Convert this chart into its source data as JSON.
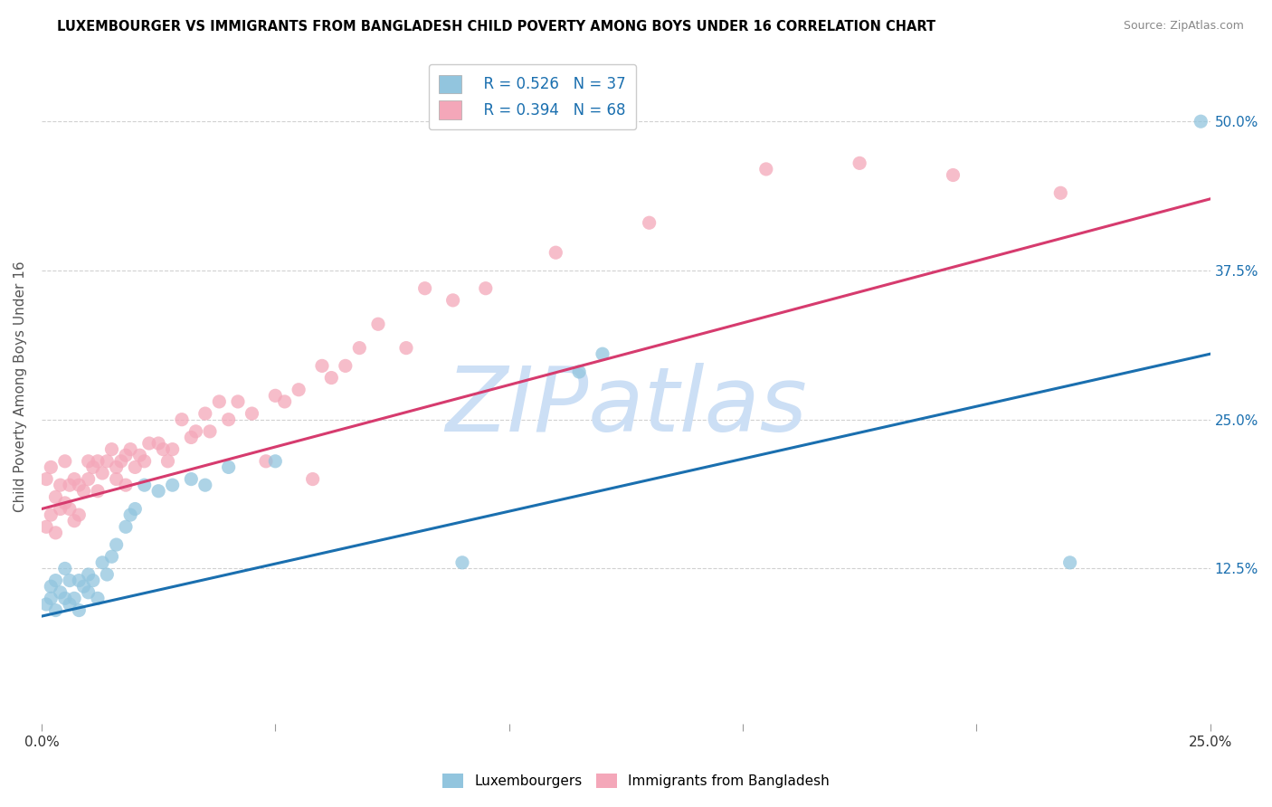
{
  "title": "LUXEMBOURGER VS IMMIGRANTS FROM BANGLADESH CHILD POVERTY AMONG BOYS UNDER 16 CORRELATION CHART",
  "source": "Source: ZipAtlas.com",
  "ylabel": "Child Poverty Among Boys Under 16",
  "xlim": [
    0,
    0.25
  ],
  "ylim": [
    -0.005,
    0.56
  ],
  "ytick_labels_right": [
    "12.5%",
    "25.0%",
    "37.5%",
    "50.0%"
  ],
  "ytick_vals_right": [
    0.125,
    0.25,
    0.375,
    0.5
  ],
  "blue_R": 0.526,
  "blue_N": 37,
  "pink_R": 0.394,
  "pink_N": 68,
  "blue_color": "#92c5de",
  "pink_color": "#f4a7b9",
  "blue_line_color": "#1a6faf",
  "pink_line_color": "#d63b6e",
  "watermark": "ZIPatlas",
  "watermark_color": "#ccdff5",
  "blue_line_x0": 0.0,
  "blue_line_y0": 0.085,
  "blue_line_x1": 0.25,
  "blue_line_y1": 0.305,
  "pink_line_x0": 0.0,
  "pink_line_y0": 0.175,
  "pink_line_x1": 0.25,
  "pink_line_y1": 0.435,
  "blue_scatter_x": [
    0.001,
    0.002,
    0.002,
    0.003,
    0.003,
    0.004,
    0.005,
    0.005,
    0.006,
    0.006,
    0.007,
    0.008,
    0.008,
    0.009,
    0.01,
    0.01,
    0.011,
    0.012,
    0.013,
    0.014,
    0.015,
    0.016,
    0.018,
    0.019,
    0.02,
    0.022,
    0.025,
    0.028,
    0.032,
    0.035,
    0.04,
    0.05,
    0.09,
    0.115,
    0.12,
    0.22,
    0.248
  ],
  "blue_scatter_y": [
    0.095,
    0.11,
    0.1,
    0.115,
    0.09,
    0.105,
    0.125,
    0.1,
    0.115,
    0.095,
    0.1,
    0.115,
    0.09,
    0.11,
    0.105,
    0.12,
    0.115,
    0.1,
    0.13,
    0.12,
    0.135,
    0.145,
    0.16,
    0.17,
    0.175,
    0.195,
    0.19,
    0.195,
    0.2,
    0.195,
    0.21,
    0.215,
    0.13,
    0.29,
    0.305,
    0.13,
    0.5
  ],
  "pink_scatter_x": [
    0.001,
    0.001,
    0.002,
    0.002,
    0.003,
    0.003,
    0.004,
    0.004,
    0.005,
    0.005,
    0.006,
    0.006,
    0.007,
    0.007,
    0.008,
    0.008,
    0.009,
    0.01,
    0.01,
    0.011,
    0.012,
    0.012,
    0.013,
    0.014,
    0.015,
    0.016,
    0.016,
    0.017,
    0.018,
    0.018,
    0.019,
    0.02,
    0.021,
    0.022,
    0.023,
    0.025,
    0.026,
    0.027,
    0.028,
    0.03,
    0.032,
    0.033,
    0.035,
    0.036,
    0.038,
    0.04,
    0.042,
    0.045,
    0.048,
    0.05,
    0.052,
    0.055,
    0.058,
    0.06,
    0.062,
    0.065,
    0.068,
    0.072,
    0.078,
    0.082,
    0.088,
    0.095,
    0.11,
    0.13,
    0.155,
    0.175,
    0.195,
    0.218
  ],
  "pink_scatter_y": [
    0.16,
    0.2,
    0.17,
    0.21,
    0.185,
    0.155,
    0.195,
    0.175,
    0.18,
    0.215,
    0.175,
    0.195,
    0.2,
    0.165,
    0.195,
    0.17,
    0.19,
    0.215,
    0.2,
    0.21,
    0.19,
    0.215,
    0.205,
    0.215,
    0.225,
    0.2,
    0.21,
    0.215,
    0.195,
    0.22,
    0.225,
    0.21,
    0.22,
    0.215,
    0.23,
    0.23,
    0.225,
    0.215,
    0.225,
    0.25,
    0.235,
    0.24,
    0.255,
    0.24,
    0.265,
    0.25,
    0.265,
    0.255,
    0.215,
    0.27,
    0.265,
    0.275,
    0.2,
    0.295,
    0.285,
    0.295,
    0.31,
    0.33,
    0.31,
    0.36,
    0.35,
    0.36,
    0.39,
    0.415,
    0.46,
    0.465,
    0.455,
    0.44
  ]
}
